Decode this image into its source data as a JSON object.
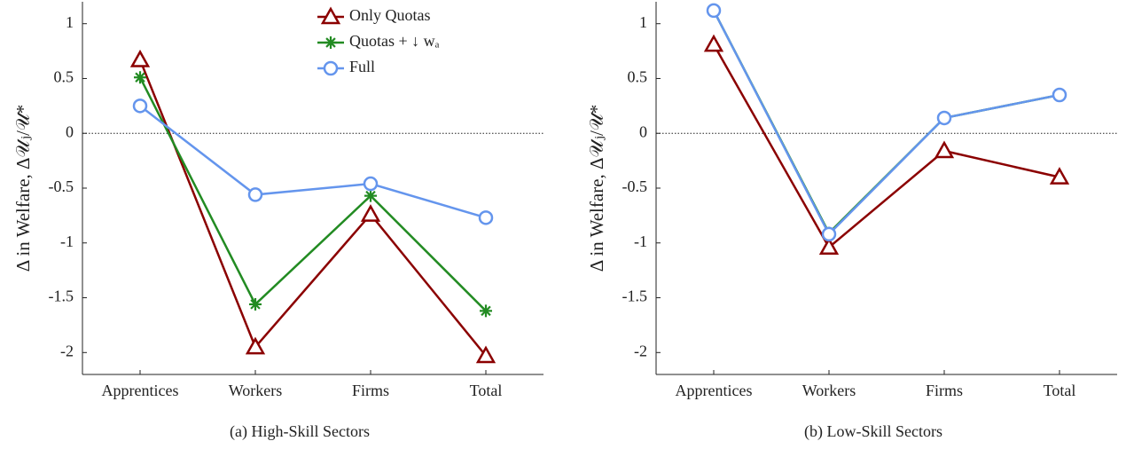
{
  "chart_data": [
    {
      "type": "line",
      "caption": "(a) High-Skill Sectors",
      "ylabel": "Δ in Welfare, Δ𝒰ⱼ/𝒰*",
      "categories": [
        "Apprentices",
        "Workers",
        "Firms",
        "Total"
      ],
      "ylim": [
        -2.2,
        1.2
      ],
      "yticks": [
        -2,
        -1.5,
        -1,
        -0.5,
        0,
        0.5,
        1
      ],
      "zero_line": true,
      "legend": "upper right",
      "series": [
        {
          "name": "Only Quotas",
          "color": "#8b0000",
          "marker": "triangle",
          "values": [
            0.67,
            -1.95,
            -0.74,
            -2.03
          ]
        },
        {
          "name": "Quotas + ↓ wₐ",
          "color": "#228b22",
          "marker": "asterisk",
          "values": [
            0.51,
            -1.56,
            -0.57,
            -1.62
          ]
        },
        {
          "name": "Full",
          "color": "#6495ed",
          "marker": "circle",
          "values": [
            0.25,
            -0.56,
            -0.46,
            -0.77
          ]
        }
      ]
    },
    {
      "type": "line",
      "caption": "(b) Low-Skill Sectors",
      "ylabel": "Δ in Welfare, Δ𝒰ⱼ/𝒰*",
      "categories": [
        "Apprentices",
        "Workers",
        "Firms",
        "Total"
      ],
      "ylim": [
        -2.2,
        1.2
      ],
      "yticks": [
        -2,
        -1.5,
        -1,
        -0.5,
        0,
        0.5,
        1
      ],
      "zero_line": true,
      "series": [
        {
          "color": "#8b0000",
          "marker": "triangle",
          "values": [
            0.81,
            -1.04,
            -0.16,
            -0.4
          ]
        },
        {
          "color": "#228b22",
          "marker": "asterisk",
          "values": [
            1.12,
            -0.91,
            0.14,
            0.35
          ]
        },
        {
          "color": "#6495ed",
          "marker": "circle",
          "values": [
            1.12,
            -0.92,
            0.14,
            0.35
          ]
        }
      ]
    }
  ]
}
